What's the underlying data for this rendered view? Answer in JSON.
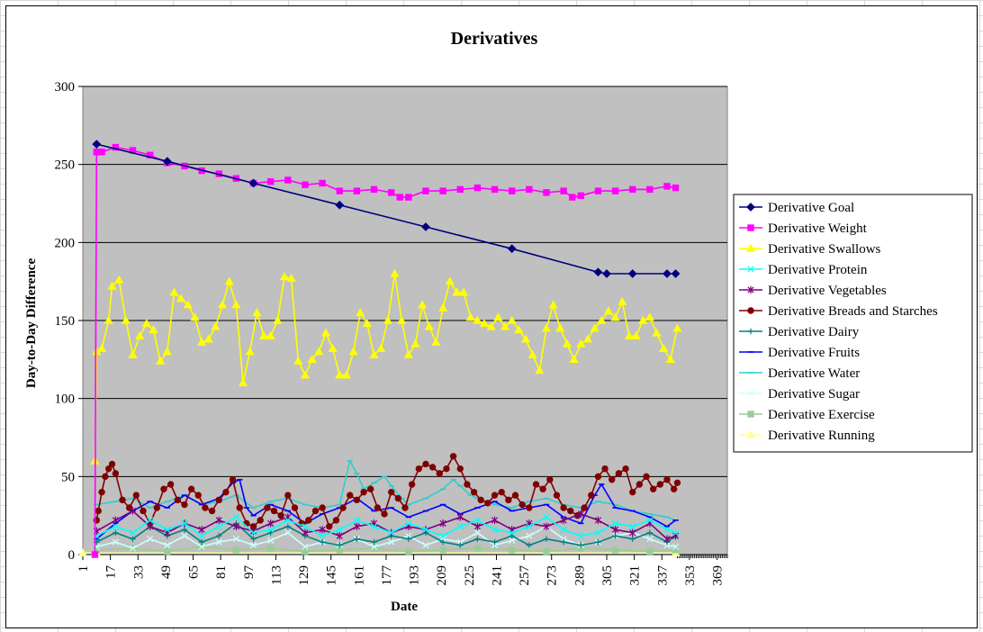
{
  "chart_data": {
    "type": "line",
    "title": "Derivatives",
    "xlabel": "Date",
    "ylabel": "Day-to-Day Difference",
    "xlim": [
      1,
      375
    ],
    "ylim": [
      0,
      300
    ],
    "x_ticks": [
      1,
      17,
      33,
      49,
      65,
      81,
      97,
      113,
      129,
      145,
      161,
      177,
      193,
      209,
      225,
      241,
      257,
      273,
      289,
      305,
      321,
      337,
      353,
      369
    ],
    "y_ticks": [
      0,
      50,
      100,
      150,
      200,
      250,
      300
    ],
    "grid": "horizontal",
    "plot_background": "#c0c0c0",
    "legend_position": "right",
    "series": [
      {
        "name": "Derivative Goal",
        "color": "#000080",
        "marker": "diamond",
        "x": [
          9,
          50,
          100,
          150,
          200,
          250,
          300,
          305,
          320,
          340,
          345
        ],
        "y": [
          263,
          252,
          238,
          224,
          210,
          196,
          181,
          180,
          180,
          180,
          180
        ]
      },
      {
        "name": "Derivative Weight",
        "color": "#ff00ff",
        "marker": "square",
        "x": [
          8,
          9,
          12,
          20,
          30,
          40,
          50,
          60,
          70,
          80,
          90,
          100,
          110,
          120,
          130,
          140,
          150,
          160,
          170,
          180,
          185,
          190,
          200,
          210,
          220,
          230,
          240,
          250,
          260,
          270,
          280,
          285,
          290,
          300,
          310,
          320,
          330,
          340,
          345
        ],
        "y": [
          0,
          258,
          258,
          261,
          259,
          256,
          251,
          249,
          246,
          244,
          241,
          238,
          239,
          240,
          237,
          238,
          233,
          233,
          234,
          232,
          229,
          229,
          233,
          233,
          234,
          235,
          234,
          233,
          234,
          232,
          233,
          229,
          230,
          233,
          233,
          234,
          234,
          236,
          235
        ]
      },
      {
        "name": "Derivative Swallows",
        "color": "#ffff00",
        "marker": "triangle",
        "x": [
          8,
          9,
          12,
          16,
          18,
          22,
          26,
          30,
          34,
          38,
          42,
          46,
          50,
          54,
          58,
          62,
          66,
          70,
          74,
          78,
          82,
          86,
          90,
          94,
          98,
          102,
          106,
          110,
          114,
          118,
          122,
          126,
          130,
          134,
          138,
          142,
          146,
          150,
          154,
          158,
          162,
          166,
          170,
          174,
          178,
          182,
          186,
          190,
          194,
          198,
          202,
          206,
          210,
          214,
          218,
          222,
          226,
          230,
          234,
          238,
          242,
          246,
          250,
          254,
          258,
          262,
          266,
          270,
          274,
          278,
          282,
          286,
          290,
          294,
          298,
          302,
          306,
          310,
          314,
          318,
          322,
          326,
          330,
          334,
          338,
          342,
          346
        ],
        "y": [
          60,
          130,
          132,
          150,
          172,
          176,
          150,
          128,
          140,
          148,
          144,
          124,
          130,
          168,
          164,
          160,
          152,
          136,
          138,
          146,
          160,
          175,
          160,
          110,
          130,
          155,
          140,
          140,
          150,
          178,
          177,
          124,
          115,
          125,
          130,
          142,
          132,
          115,
          115,
          130,
          155,
          148,
          128,
          132,
          150,
          180,
          150,
          128,
          135,
          160,
          146,
          136,
          158,
          175,
          168,
          168,
          152,
          150,
          148,
          146,
          152,
          146,
          150,
          144,
          138,
          128,
          118,
          145,
          160,
          145,
          135,
          125,
          135,
          138,
          145,
          150,
          156,
          152,
          162,
          140,
          140,
          150,
          152,
          142,
          132,
          125,
          145
        ]
      },
      {
        "name": "Derivative Protein",
        "color": "#00ffff",
        "marker": "x",
        "x": [
          9,
          20,
          30,
          40,
          50,
          60,
          70,
          80,
          90,
          100,
          110,
          120,
          130,
          140,
          150,
          160,
          170,
          180,
          190,
          200,
          210,
          220,
          230,
          240,
          250,
          260,
          270,
          280,
          290,
          300,
          310,
          320,
          330,
          340,
          345
        ],
        "y": [
          12,
          18,
          14,
          22,
          16,
          20,
          12,
          18,
          24,
          14,
          16,
          22,
          18,
          12,
          16,
          22,
          18,
          14,
          20,
          16,
          12,
          18,
          22,
          16,
          14,
          18,
          24,
          16,
          12,
          14,
          20,
          18,
          22,
          16,
          14
        ]
      },
      {
        "name": "Derivative Vegetables",
        "color": "#800080",
        "marker": "star",
        "x": [
          9,
          20,
          30,
          40,
          50,
          60,
          70,
          80,
          90,
          100,
          110,
          120,
          130,
          140,
          150,
          160,
          170,
          180,
          190,
          200,
          210,
          220,
          230,
          240,
          250,
          260,
          270,
          280,
          290,
          300,
          310,
          320,
          330,
          340,
          345
        ],
        "y": [
          15,
          22,
          28,
          18,
          14,
          20,
          16,
          22,
          18,
          15,
          20,
          24,
          14,
          16,
          12,
          18,
          20,
          14,
          18,
          16,
          20,
          24,
          18,
          22,
          16,
          20,
          18,
          22,
          26,
          22,
          16,
          14,
          20,
          10,
          12
        ]
      },
      {
        "name": "Derivative Breads and Starches",
        "color": "#800000",
        "marker": "circle",
        "x": [
          9,
          10,
          12,
          14,
          16,
          18,
          20,
          24,
          28,
          32,
          36,
          40,
          44,
          48,
          52,
          56,
          60,
          64,
          68,
          72,
          76,
          80,
          84,
          88,
          92,
          96,
          100,
          104,
          108,
          112,
          116,
          120,
          124,
          128,
          132,
          136,
          140,
          144,
          148,
          152,
          156,
          160,
          164,
          168,
          172,
          176,
          180,
          184,
          188,
          192,
          196,
          200,
          204,
          208,
          212,
          216,
          220,
          224,
          228,
          232,
          236,
          240,
          244,
          248,
          252,
          256,
          260,
          264,
          268,
          272,
          276,
          280,
          284,
          288,
          292,
          296,
          300,
          304,
          308,
          312,
          316,
          320,
          324,
          328,
          332,
          336,
          340,
          344,
          346
        ],
        "y": [
          22,
          28,
          40,
          50,
          55,
          58,
          52,
          35,
          30,
          38,
          28,
          20,
          30,
          42,
          45,
          35,
          32,
          42,
          38,
          30,
          28,
          35,
          40,
          48,
          30,
          20,
          18,
          22,
          30,
          28,
          25,
          38,
          30,
          20,
          22,
          28,
          30,
          18,
          22,
          30,
          38,
          35,
          40,
          42,
          30,
          26,
          40,
          36,
          30,
          45,
          55,
          58,
          56,
          52,
          55,
          63,
          55,
          45,
          40,
          35,
          33,
          38,
          40,
          35,
          38,
          32,
          30,
          45,
          42,
          48,
          38,
          30,
          28,
          25,
          30,
          38,
          50,
          55,
          48,
          52,
          55,
          40,
          45,
          50,
          42,
          45,
          48,
          42,
          46
        ]
      },
      {
        "name": "Derivative Dairy",
        "color": "#008080",
        "marker": "plus",
        "x": [
          9,
          20,
          30,
          40,
          50,
          60,
          70,
          80,
          90,
          100,
          110,
          120,
          130,
          140,
          150,
          160,
          170,
          180,
          190,
          200,
          210,
          220,
          230,
          240,
          250,
          260,
          270,
          280,
          290,
          300,
          310,
          320,
          330,
          340,
          345
        ],
        "y": [
          8,
          14,
          10,
          18,
          12,
          16,
          8,
          12,
          20,
          10,
          14,
          18,
          12,
          8,
          6,
          10,
          8,
          12,
          10,
          14,
          8,
          6,
          10,
          8,
          12,
          6,
          10,
          8,
          6,
          8,
          12,
          10,
          14,
          8,
          12
        ]
      },
      {
        "name": "Derivative Fruits",
        "color": "#0000ff",
        "marker": "dash",
        "x": [
          9,
          20,
          30,
          40,
          50,
          60,
          70,
          80,
          88,
          92,
          96,
          100,
          110,
          120,
          130,
          140,
          150,
          160,
          170,
          180,
          190,
          200,
          210,
          220,
          230,
          240,
          250,
          260,
          270,
          280,
          290,
          298,
          302,
          310,
          320,
          330,
          340,
          345
        ],
        "y": [
          10,
          20,
          28,
          34,
          30,
          38,
          32,
          36,
          46,
          48,
          30,
          25,
          32,
          28,
          20,
          26,
          30,
          36,
          28,
          30,
          24,
          28,
          32,
          26,
          30,
          34,
          28,
          30,
          32,
          24,
          20,
          38,
          45,
          30,
          28,
          24,
          18,
          22
        ]
      },
      {
        "name": "Derivative Water",
        "color": "#33cccc",
        "marker": "dash",
        "x": [
          9,
          20,
          30,
          40,
          50,
          60,
          70,
          80,
          90,
          100,
          110,
          120,
          130,
          140,
          150,
          156,
          160,
          164,
          170,
          176,
          180,
          186,
          190,
          200,
          210,
          216,
          220,
          226,
          230,
          240,
          250,
          260,
          270,
          280,
          290,
          300,
          310,
          320,
          330,
          340,
          345
        ],
        "y": [
          32,
          34,
          36,
          30,
          34,
          38,
          32,
          34,
          38,
          30,
          34,
          36,
          32,
          30,
          32,
          60,
          52,
          42,
          46,
          50,
          44,
          36,
          32,
          36,
          42,
          48,
          44,
          38,
          36,
          32,
          30,
          34,
          36,
          32,
          30,
          34,
          32,
          28,
          26,
          24,
          22
        ]
      },
      {
        "name": "Derivative Sugar",
        "color": "#ccffff",
        "marker": "x",
        "x": [
          9,
          20,
          30,
          40,
          50,
          60,
          70,
          80,
          90,
          100,
          110,
          120,
          130,
          140,
          150,
          160,
          170,
          180,
          190,
          200,
          210,
          220,
          230,
          240,
          250,
          260,
          270,
          280,
          290,
          300,
          310,
          320,
          330,
          340,
          345
        ],
        "y": [
          5,
          8,
          4,
          10,
          6,
          12,
          5,
          8,
          10,
          6,
          9,
          14,
          5,
          8,
          6,
          10,
          5,
          8,
          12,
          6,
          10,
          8,
          14,
          6,
          9,
          12,
          18,
          10,
          6,
          8,
          12,
          14,
          10,
          6,
          5
        ]
      },
      {
        "name": "Derivative Exercise",
        "color": "#99cc99",
        "marker": "square",
        "x": [
          9,
          30,
          50,
          70,
          90,
          110,
          130,
          150,
          170,
          190,
          210,
          230,
          250,
          270,
          290,
          310,
          330,
          345
        ],
        "y": [
          3,
          4,
          2,
          5,
          3,
          4,
          2,
          3,
          4,
          2,
          3,
          4,
          3,
          2,
          4,
          3,
          2,
          3
        ]
      },
      {
        "name": "Derivative Running",
        "color": "#ffff99",
        "marker": "triangle",
        "x": [
          1,
          8,
          9,
          345
        ],
        "y": [
          1,
          1,
          1,
          1
        ]
      }
    ]
  }
}
